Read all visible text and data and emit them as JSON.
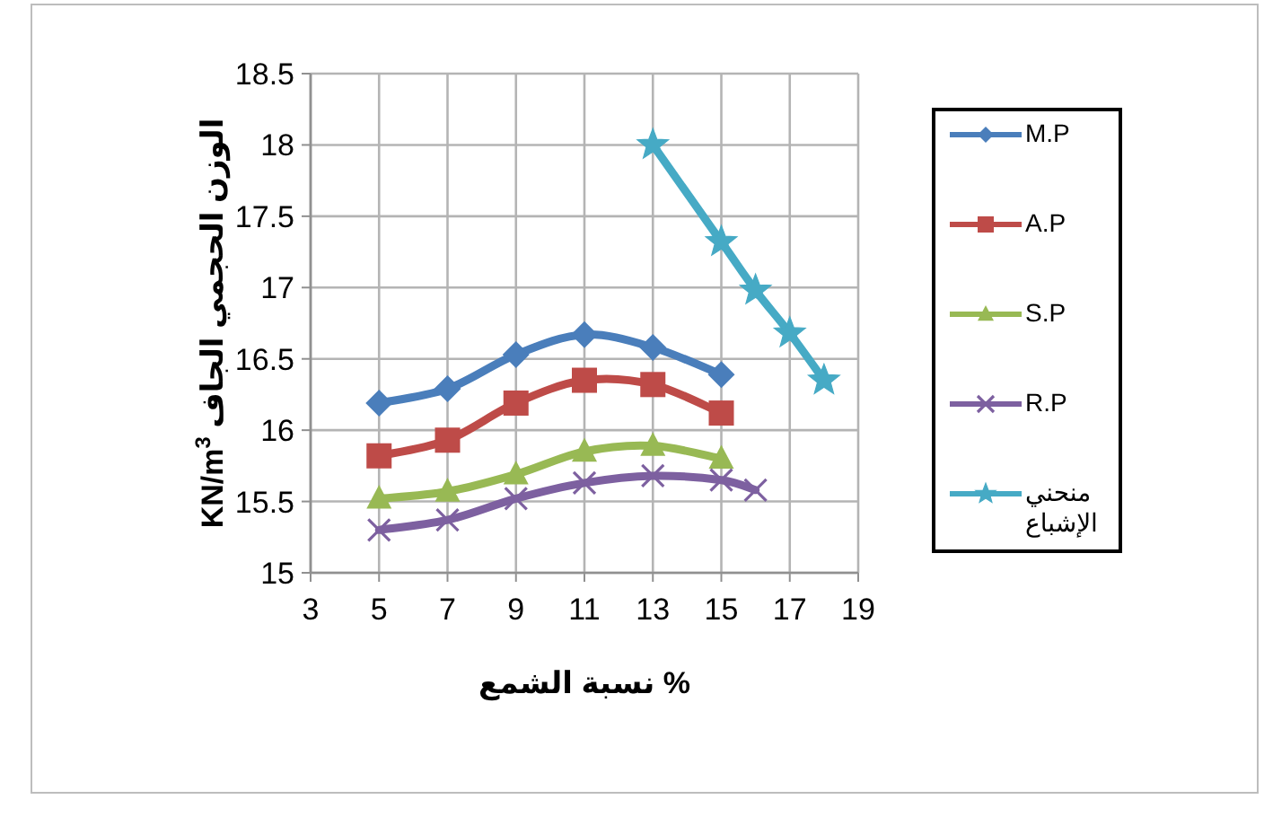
{
  "chart_data": {
    "type": "line",
    "xlabel": "نسبة الشمع %",
    "ylabel": "KN/m$^{3}$ الوزن الحجمي الجاف",
    "xlim": [
      3,
      19
    ],
    "xticks": [
      3,
      5,
      7,
      9,
      11,
      13,
      15,
      17,
      19
    ],
    "ylim": [
      15,
      18.5
    ],
    "yticks": [
      15,
      15.5,
      16,
      16.5,
      17,
      17.5,
      18,
      18.5
    ],
    "grid": true,
    "legend": "right",
    "series": [
      {
        "name": "M.P",
        "color": "#4a7ebb",
        "marker": "diamond",
        "x": [
          5,
          7,
          9,
          11,
          13,
          15
        ],
        "values": [
          16.19,
          16.29,
          16.53,
          16.67,
          16.58,
          16.39
        ]
      },
      {
        "name": "A.P",
        "color": "#be4b48",
        "marker": "square",
        "x": [
          5,
          7,
          9,
          11,
          13,
          15
        ],
        "values": [
          15.82,
          15.93,
          16.19,
          16.35,
          16.32,
          16.12
        ]
      },
      {
        "name": "S.P",
        "color": "#98b954",
        "marker": "triangle",
        "x": [
          5,
          7,
          9,
          11,
          13,
          15
        ],
        "values": [
          15.52,
          15.57,
          15.69,
          15.85,
          15.89,
          15.8
        ]
      },
      {
        "name": "R.P",
        "color": "#7d60a0",
        "marker": "cross",
        "x": [
          5,
          7,
          9,
          11,
          13,
          15,
          16
        ],
        "values": [
          15.3,
          15.37,
          15.52,
          15.63,
          15.68,
          15.65,
          15.58
        ]
      },
      {
        "name": "منحني الإشباع",
        "color": "#46aac5",
        "marker": "star",
        "x": [
          13,
          15,
          16,
          17,
          18
        ],
        "values": [
          18.0,
          17.32,
          16.98,
          16.68,
          16.35
        ]
      }
    ]
  }
}
